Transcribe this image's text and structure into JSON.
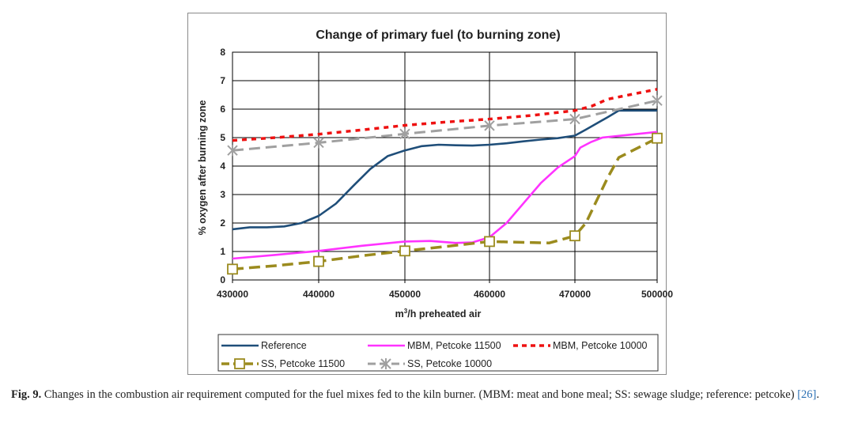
{
  "chart_data": {
    "type": "line",
    "title": "Change of primary fuel (to burning zone)",
    "xlabel": "m³/h preheated air",
    "ylabel": "% oxygen after burning zone",
    "xlim": [
      430000,
      500000
    ],
    "ylim": [
      0,
      8
    ],
    "x_ticks": [
      {
        "value": 430000,
        "label": "430000"
      },
      {
        "value": 440000,
        "label": "440000"
      },
      {
        "value": 450000,
        "label": "450000"
      },
      {
        "value": 460000,
        "label": "460000"
      },
      {
        "value": 470000,
        "label": "470000"
      },
      {
        "value": 500000,
        "label": "500000"
      }
    ],
    "y_ticks": [
      0,
      1,
      2,
      3,
      4,
      5,
      6,
      7,
      8
    ],
    "grid": true,
    "legend_position": "bottom",
    "series": [
      {
        "name": "Reference",
        "color": "#1f4e79",
        "style": "solid",
        "marker": "none",
        "points": [
          [
            430000,
            1.78
          ],
          [
            432000,
            1.85
          ],
          [
            434000,
            1.85
          ],
          [
            436000,
            1.88
          ],
          [
            438000,
            2.0
          ],
          [
            440000,
            2.25
          ],
          [
            442000,
            2.68
          ],
          [
            444000,
            3.3
          ],
          [
            446000,
            3.9
          ],
          [
            448000,
            4.35
          ],
          [
            450000,
            4.55
          ],
          [
            452000,
            4.7
          ],
          [
            454000,
            4.75
          ],
          [
            456000,
            4.73
          ],
          [
            458000,
            4.72
          ],
          [
            460000,
            4.75
          ],
          [
            462000,
            4.8
          ],
          [
            464000,
            4.87
          ],
          [
            466000,
            4.93
          ],
          [
            468000,
            4.98
          ],
          [
            470000,
            5.07
          ],
          [
            474000,
            5.28
          ],
          [
            478000,
            5.5
          ],
          [
            482000,
            5.72
          ],
          [
            486000,
            5.95
          ],
          [
            500000,
            5.95
          ]
        ]
      },
      {
        "name": "MBM, Petcoke 11500",
        "color": "#ff33ff",
        "style": "solid",
        "marker": "none",
        "points": [
          [
            430000,
            0.75
          ],
          [
            435000,
            0.88
          ],
          [
            440000,
            1.02
          ],
          [
            445000,
            1.2
          ],
          [
            450000,
            1.35
          ],
          [
            453000,
            1.37
          ],
          [
            456000,
            1.3
          ],
          [
            458000,
            1.32
          ],
          [
            460000,
            1.5
          ],
          [
            462000,
            2.0
          ],
          [
            464000,
            2.7
          ],
          [
            466000,
            3.4
          ],
          [
            468000,
            3.95
          ],
          [
            470000,
            4.35
          ],
          [
            472000,
            4.65
          ],
          [
            476000,
            4.85
          ],
          [
            480000,
            5.0
          ],
          [
            500000,
            5.2
          ]
        ]
      },
      {
        "name": "MBM, Petcoke 10000",
        "color": "#ee1111",
        "style": "dotted",
        "marker": "none",
        "points": [
          [
            430000,
            4.9
          ],
          [
            435000,
            5.0
          ],
          [
            440000,
            5.12
          ],
          [
            445000,
            5.27
          ],
          [
            450000,
            5.43
          ],
          [
            455000,
            5.55
          ],
          [
            460000,
            5.65
          ],
          [
            465000,
            5.78
          ],
          [
            470000,
            5.95
          ],
          [
            476000,
            6.1
          ],
          [
            482000,
            6.35
          ],
          [
            500000,
            6.7
          ]
        ]
      },
      {
        "name": "SS, Petcoke 11500",
        "color": "#9b8b1e",
        "style": "dashed",
        "marker": "square",
        "markers": [
          [
            430000,
            0.38
          ],
          [
            440000,
            0.65
          ],
          [
            450000,
            1.02
          ],
          [
            460000,
            1.35
          ],
          [
            470000,
            1.55
          ],
          [
            500000,
            4.98
          ]
        ],
        "points": [
          [
            430000,
            0.38
          ],
          [
            435000,
            0.5
          ],
          [
            440000,
            0.65
          ],
          [
            445000,
            0.85
          ],
          [
            450000,
            1.02
          ],
          [
            455000,
            1.18
          ],
          [
            460000,
            1.35
          ],
          [
            464000,
            1.32
          ],
          [
            467000,
            1.3
          ],
          [
            470000,
            1.55
          ],
          [
            474000,
            2.0
          ],
          [
            478000,
            2.8
          ],
          [
            482000,
            3.6
          ],
          [
            486000,
            4.3
          ],
          [
            500000,
            4.98
          ]
        ]
      },
      {
        "name": "SS, Petcoke 10000",
        "color": "#a0a0a0",
        "style": "dashed",
        "marker": "x",
        "markers": [
          [
            430000,
            4.55
          ],
          [
            440000,
            4.82
          ],
          [
            450000,
            5.13
          ],
          [
            460000,
            5.42
          ],
          [
            470000,
            5.65
          ],
          [
            500000,
            6.3
          ]
        ],
        "points": [
          [
            430000,
            4.55
          ],
          [
            440000,
            4.82
          ],
          [
            450000,
            5.13
          ],
          [
            460000,
            5.42
          ],
          [
            470000,
            5.65
          ],
          [
            500000,
            6.3
          ]
        ]
      }
    ]
  },
  "caption": {
    "label": "Fig. 9.",
    "text": " Changes in the combustion air requirement computed for the fuel mixes fed to the kiln burner. (MBM: meat and bone meal; SS: sewage sludge; reference: petcoke) ",
    "ref": "[26]",
    "end": "."
  }
}
